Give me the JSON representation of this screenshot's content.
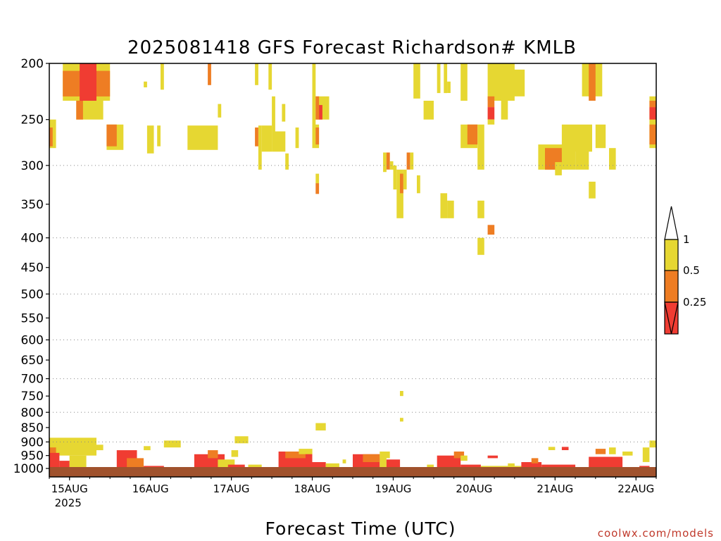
{
  "chart_data": {
    "type": "heatmap",
    "title": "2025081418 GFS Forecast Richardson# KMLB",
    "xlabel": "Forecast Time (UTC)",
    "ylabel": "",
    "credit": "coolwx.com/models",
    "x_unit": "forecast hours from 2025-08-14 18Z",
    "x_range_hours": [
      0,
      180
    ],
    "x_ticks": [
      {
        "label": "15AUG",
        "sublabel": "2025",
        "hour": 6
      },
      {
        "label": "16AUG",
        "hour": 30
      },
      {
        "label": "17AUG",
        "hour": 54
      },
      {
        "label": "18AUG",
        "hour": 78
      },
      {
        "label": "19AUG",
        "hour": 102
      },
      {
        "label": "20AUG",
        "hour": 126
      },
      {
        "label": "21AUG",
        "hour": 150
      },
      {
        "label": "22AUG",
        "hour": 174
      }
    ],
    "y_unit": "hPa",
    "y_scale": "log",
    "y_range": [
      200,
      1000
    ],
    "y_ticks": [
      200,
      250,
      300,
      350,
      400,
      450,
      500,
      550,
      600,
      650,
      700,
      750,
      800,
      850,
      900,
      950,
      1000
    ],
    "gridlines": [
      300,
      400,
      500,
      600,
      700,
      800,
      900,
      1000
    ],
    "legend": {
      "placement": "right",
      "bins": [
        {
          "label": "< 0.25",
          "color": "#f03c32"
        },
        {
          "label": "0.25-0.5",
          "color": "#ee7d23"
        },
        {
          "label": "0.5-1",
          "color": "#e6d732"
        }
      ],
      "tick_labels": [
        "1",
        "0.5",
        "0.25"
      ]
    },
    "ground_color": "#a0522d",
    "category_colors": {
      "y": "#e6d732",
      "o": "#ee7d23",
      "r": "#f03c32"
    },
    "cells": [
      {
        "c": "y",
        "h0": 4,
        "h1": 18,
        "p0": 200,
        "p1": 232
      },
      {
        "c": "o",
        "h0": 4,
        "h1": 18,
        "p0": 206,
        "p1": 228
      },
      {
        "c": "r",
        "h0": 9,
        "h1": 14,
        "p0": 200,
        "p1": 232
      },
      {
        "c": "y",
        "h0": 8,
        "h1": 16,
        "p0": 232,
        "p1": 250
      },
      {
        "c": "o",
        "h0": 8,
        "h1": 10,
        "p0": 232,
        "p1": 250
      },
      {
        "c": "y",
        "h0": 0,
        "h1": 2,
        "p0": 250,
        "p1": 280
      },
      {
        "c": "o",
        "h0": 0,
        "h1": 1,
        "p0": 258,
        "p1": 278
      },
      {
        "c": "y",
        "h0": 17,
        "h1": 22,
        "p0": 255,
        "p1": 282
      },
      {
        "c": "o",
        "h0": 17,
        "h1": 20,
        "p0": 255,
        "p1": 278
      },
      {
        "c": "y",
        "h0": 28,
        "h1": 29,
        "p0": 215,
        "p1": 220
      },
      {
        "c": "y",
        "h0": 33,
        "h1": 34,
        "p0": 200,
        "p1": 222
      },
      {
        "c": "y",
        "h0": 29,
        "h1": 31,
        "p0": 256,
        "p1": 286
      },
      {
        "c": "y",
        "h0": 32,
        "h1": 33,
        "p0": 256,
        "p1": 278
      },
      {
        "c": "y",
        "h0": 41,
        "h1": 50,
        "p0": 256,
        "p1": 282
      },
      {
        "c": "y",
        "h0": 50,
        "h1": 51,
        "p0": 235,
        "p1": 248
      },
      {
        "c": "o",
        "h0": 47,
        "h1": 48,
        "p0": 200,
        "p1": 218
      },
      {
        "c": "y",
        "h0": 61,
        "h1": 62,
        "p0": 200,
        "p1": 218
      },
      {
        "c": "y",
        "h0": 62,
        "h1": 63,
        "p0": 256,
        "p1": 305
      },
      {
        "c": "y",
        "h0": 63,
        "h1": 66,
        "p0": 256,
        "p1": 284
      },
      {
        "c": "o",
        "h0": 61,
        "h1": 62,
        "p0": 258,
        "p1": 278
      },
      {
        "c": "y",
        "h0": 66,
        "h1": 70,
        "p0": 262,
        "p1": 284
      },
      {
        "c": "y",
        "h0": 66,
        "h1": 67,
        "p0": 228,
        "p1": 262
      },
      {
        "c": "y",
        "h0": 65,
        "h1": 66,
        "p0": 200,
        "p1": 222
      },
      {
        "c": "y",
        "h0": 69,
        "h1": 70,
        "p0": 235,
        "p1": 252
      },
      {
        "c": "y",
        "h0": 73,
        "h1": 74,
        "p0": 258,
        "p1": 280
      },
      {
        "c": "y",
        "h0": 70,
        "h1": 71,
        "p0": 286,
        "p1": 305
      },
      {
        "c": "y",
        "h0": 78,
        "h1": 79,
        "p0": 200,
        "p1": 270
      },
      {
        "c": "y",
        "h0": 79,
        "h1": 83,
        "p0": 228,
        "p1": 250
      },
      {
        "c": "o",
        "h0": 79,
        "h1": 80,
        "p0": 228,
        "p1": 250
      },
      {
        "c": "r",
        "h0": 80,
        "h1": 81,
        "p0": 236,
        "p1": 250
      },
      {
        "c": "y",
        "h0": 78,
        "h1": 80,
        "p0": 255,
        "p1": 280
      },
      {
        "c": "o",
        "h0": 79,
        "h1": 80,
        "p0": 258,
        "p1": 276
      },
      {
        "c": "y",
        "h0": 79,
        "h1": 80,
        "p0": 310,
        "p1": 322
      },
      {
        "c": "o",
        "h0": 79,
        "h1": 80,
        "p0": 322,
        "p1": 336
      },
      {
        "c": "y",
        "h0": 99,
        "h1": 100,
        "p0": 285,
        "p1": 308
      },
      {
        "c": "o",
        "h0": 100,
        "h1": 101,
        "p0": 285,
        "p1": 305
      },
      {
        "c": "y",
        "h0": 101,
        "h1": 102,
        "p0": 295,
        "p1": 305
      },
      {
        "c": "y",
        "h0": 102,
        "h1": 103,
        "p0": 300,
        "p1": 330
      },
      {
        "c": "y",
        "h0": 103,
        "h1": 105,
        "p0": 305,
        "p1": 370
      },
      {
        "c": "o",
        "h0": 104,
        "h1": 105,
        "p0": 310,
        "p1": 335
      },
      {
        "c": "y",
        "h0": 105,
        "h1": 106,
        "p0": 305,
        "p1": 330
      },
      {
        "c": "o",
        "h0": 106,
        "h1": 107,
        "p0": 285,
        "p1": 305
      },
      {
        "c": "y",
        "h0": 107,
        "h1": 108,
        "p0": 285,
        "p1": 305
      },
      {
        "c": "y",
        "h0": 109,
        "h1": 110,
        "p0": 312,
        "p1": 335
      },
      {
        "c": "y",
        "h0": 108,
        "h1": 110,
        "p0": 200,
        "p1": 230
      },
      {
        "c": "y",
        "h0": 111,
        "h1": 114,
        "p0": 232,
        "p1": 250
      },
      {
        "c": "y",
        "h0": 115,
        "h1": 116,
        "p0": 200,
        "p1": 225
      },
      {
        "c": "y",
        "h0": 117,
        "h1": 118,
        "p0": 200,
        "p1": 225
      },
      {
        "c": "y",
        "h0": 116,
        "h1": 118,
        "p0": 335,
        "p1": 370
      },
      {
        "c": "y",
        "h0": 118,
        "h1": 120,
        "p0": 345,
        "p1": 370
      },
      {
        "c": "y",
        "h0": 118,
        "h1": 119,
        "p0": 215,
        "p1": 225
      },
      {
        "c": "y",
        "h0": 122,
        "h1": 124,
        "p0": 200,
        "p1": 232
      },
      {
        "c": "y",
        "h0": 122,
        "h1": 127,
        "p0": 255,
        "p1": 280
      },
      {
        "c": "o",
        "h0": 124,
        "h1": 127,
        "p0": 255,
        "p1": 276
      },
      {
        "c": "y",
        "h0": 127,
        "h1": 129,
        "p0": 255,
        "p1": 305
      },
      {
        "c": "y",
        "h0": 127,
        "h1": 129,
        "p0": 345,
        "p1": 370
      },
      {
        "c": "y",
        "h0": 127,
        "h1": 129,
        "p0": 400,
        "p1": 428
      },
      {
        "c": "o",
        "h0": 130,
        "h1": 132,
        "p0": 380,
        "p1": 395
      },
      {
        "c": "y",
        "h0": 130,
        "h1": 138,
        "p0": 200,
        "p1": 232
      },
      {
        "c": "o",
        "h0": 130,
        "h1": 132,
        "p0": 228,
        "p1": 238
      },
      {
        "c": "r",
        "h0": 130,
        "h1": 132,
        "p0": 238,
        "p1": 250
      },
      {
        "c": "y",
        "h0": 130,
        "h1": 132,
        "p0": 250,
        "p1": 255
      },
      {
        "c": "y",
        "h0": 134,
        "h1": 136,
        "p0": 232,
        "p1": 250
      },
      {
        "c": "y",
        "h0": 136,
        "h1": 141,
        "p0": 205,
        "p1": 228
      },
      {
        "c": "y",
        "h0": 145,
        "h1": 156,
        "p0": 276,
        "p1": 305
      },
      {
        "c": "o",
        "h0": 147,
        "h1": 152,
        "p0": 280,
        "p1": 305
      },
      {
        "c": "y",
        "h0": 150,
        "h1": 152,
        "p0": 296,
        "p1": 312
      },
      {
        "c": "y",
        "h0": 152,
        "h1": 161,
        "p0": 255,
        "p1": 284
      },
      {
        "c": "y",
        "h0": 156,
        "h1": 160,
        "p0": 276,
        "p1": 305
      },
      {
        "c": "y",
        "h0": 158,
        "h1": 164,
        "p0": 200,
        "p1": 228
      },
      {
        "c": "o",
        "h0": 160,
        "h1": 162,
        "p0": 200,
        "p1": 232
      },
      {
        "c": "y",
        "h0": 162,
        "h1": 165,
        "p0": 255,
        "p1": 280
      },
      {
        "c": "y",
        "h0": 160,
        "h1": 162,
        "p0": 320,
        "p1": 342
      },
      {
        "c": "y",
        "h0": 166,
        "h1": 168,
        "p0": 280,
        "p1": 305
      },
      {
        "c": "y",
        "h0": 178,
        "h1": 180,
        "p0": 228,
        "p1": 280
      },
      {
        "c": "o",
        "h0": 178,
        "h1": 180,
        "p0": 232,
        "p1": 238
      },
      {
        "c": "r",
        "h0": 178,
        "h1": 180,
        "p0": 238,
        "p1": 250
      },
      {
        "c": "o",
        "h0": 178,
        "h1": 180,
        "p0": 255,
        "p1": 276
      },
      {
        "c": "y",
        "h0": 0,
        "h1": 14,
        "p0": 885,
        "p1": 950
      },
      {
        "c": "o",
        "h0": 0,
        "h1": 2,
        "p0": 920,
        "p1": 1000
      },
      {
        "c": "r",
        "h0": 0,
        "h1": 3,
        "p0": 940,
        "p1": 1005
      },
      {
        "c": "r",
        "h0": 3,
        "h1": 6,
        "p0": 970,
        "p1": 1005
      },
      {
        "c": "y",
        "h0": 6,
        "h1": 11,
        "p0": 950,
        "p1": 1000
      },
      {
        "c": "y",
        "h0": 14,
        "h1": 16,
        "p0": 910,
        "p1": 930
      },
      {
        "c": "r",
        "h0": 20,
        "h1": 26,
        "p0": 930,
        "p1": 1005
      },
      {
        "c": "o",
        "h0": 23,
        "h1": 28,
        "p0": 960,
        "p1": 1000
      },
      {
        "c": "y",
        "h0": 28,
        "h1": 30,
        "p0": 915,
        "p1": 930
      },
      {
        "c": "r",
        "h0": 28,
        "h1": 34,
        "p0": 990,
        "p1": 1005
      },
      {
        "c": "y",
        "h0": 34,
        "h1": 39,
        "p0": 895,
        "p1": 920
      },
      {
        "c": "r",
        "h0": 43,
        "h1": 52,
        "p0": 945,
        "p1": 1005
      },
      {
        "c": "o",
        "h0": 47,
        "h1": 50,
        "p0": 930,
        "p1": 960
      },
      {
        "c": "y",
        "h0": 50,
        "h1": 55,
        "p0": 965,
        "p1": 995
      },
      {
        "c": "r",
        "h0": 53,
        "h1": 58,
        "p0": 985,
        "p1": 1005
      },
      {
        "c": "y",
        "h0": 55,
        "h1": 59,
        "p0": 880,
        "p1": 905
      },
      {
        "c": "y",
        "h0": 54,
        "h1": 56,
        "p0": 930,
        "p1": 955
      },
      {
        "c": "y",
        "h0": 59,
        "h1": 63,
        "p0": 985,
        "p1": 1005
      },
      {
        "c": "r",
        "h0": 68,
        "h1": 78,
        "p0": 935,
        "p1": 1005
      },
      {
        "c": "o",
        "h0": 70,
        "h1": 76,
        "p0": 935,
        "p1": 960
      },
      {
        "c": "y",
        "h0": 74,
        "h1": 78,
        "p0": 925,
        "p1": 945
      },
      {
        "c": "y",
        "h0": 79,
        "h1": 82,
        "p0": 835,
        "p1": 860
      },
      {
        "c": "r",
        "h0": 78,
        "h1": 82,
        "p0": 975,
        "p1": 1005
      },
      {
        "c": "y",
        "h0": 82,
        "h1": 86,
        "p0": 980,
        "p1": 1000
      },
      {
        "c": "y",
        "h0": 87,
        "h1": 88,
        "p0": 965,
        "p1": 980
      },
      {
        "c": "r",
        "h0": 90,
        "h1": 98,
        "p0": 945,
        "p1": 1005
      },
      {
        "c": "o",
        "h0": 93,
        "h1": 98,
        "p0": 945,
        "p1": 975
      },
      {
        "c": "y",
        "h0": 98,
        "h1": 101,
        "p0": 935,
        "p1": 960
      },
      {
        "c": "y",
        "h0": 98,
        "h1": 100,
        "p0": 945,
        "p1": 1000
      },
      {
        "c": "r",
        "h0": 100,
        "h1": 104,
        "p0": 965,
        "p1": 1005
      },
      {
        "c": "y",
        "h0": 104,
        "h1": 105,
        "p0": 735,
        "p1": 750
      },
      {
        "c": "y",
        "h0": 104,
        "h1": 105,
        "p0": 818,
        "p1": 830
      },
      {
        "c": "y",
        "h0": 112,
        "h1": 114,
        "p0": 985,
        "p1": 1003
      },
      {
        "c": "r",
        "h0": 115,
        "h1": 122,
        "p0": 950,
        "p1": 1005
      },
      {
        "c": "o",
        "h0": 120,
        "h1": 123,
        "p0": 935,
        "p1": 960
      },
      {
        "c": "y",
        "h0": 122,
        "h1": 124,
        "p0": 950,
        "p1": 970
      },
      {
        "c": "r",
        "h0": 122,
        "h1": 128,
        "p0": 985,
        "p1": 1005
      },
      {
        "c": "y",
        "h0": 128,
        "h1": 140,
        "p0": 990,
        "p1": 1005
      },
      {
        "c": "r",
        "h0": 130,
        "h1": 133,
        "p0": 950,
        "p1": 960
      },
      {
        "c": "y",
        "h0": 136,
        "h1": 138,
        "p0": 980,
        "p1": 1000
      },
      {
        "c": "r",
        "h0": 140,
        "h1": 146,
        "p0": 975,
        "p1": 1005
      },
      {
        "c": "o",
        "h0": 143,
        "h1": 145,
        "p0": 960,
        "p1": 980
      },
      {
        "c": "r",
        "h0": 146,
        "h1": 156,
        "p0": 985,
        "p1": 1005
      },
      {
        "c": "y",
        "h0": 148,
        "h1": 150,
        "p0": 918,
        "p1": 930
      },
      {
        "c": "r",
        "h0": 152,
        "h1": 154,
        "p0": 918,
        "p1": 930
      },
      {
        "c": "r",
        "h0": 160,
        "h1": 170,
        "p0": 955,
        "p1": 1005
      },
      {
        "c": "o",
        "h0": 162,
        "h1": 165,
        "p0": 925,
        "p1": 945
      },
      {
        "c": "y",
        "h0": 166,
        "h1": 168,
        "p0": 920,
        "p1": 945
      },
      {
        "c": "y",
        "h0": 170,
        "h1": 173,
        "p0": 935,
        "p1": 950
      },
      {
        "c": "y",
        "h0": 176,
        "h1": 178,
        "p0": 920,
        "p1": 975
      },
      {
        "c": "y",
        "h0": 178,
        "h1": 180,
        "p0": 895,
        "p1": 920
      },
      {
        "c": "r",
        "h0": 175,
        "h1": 178,
        "p0": 990,
        "p1": 1005
      }
    ]
  }
}
